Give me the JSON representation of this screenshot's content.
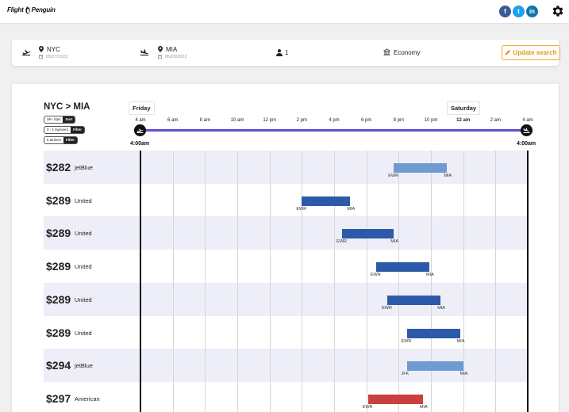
{
  "header": {
    "logo_left": "Flight",
    "logo_right": "Penguin",
    "social": [
      {
        "icon": "facebook-icon",
        "glyph": "f",
        "color": "#3b5998"
      },
      {
        "icon": "twitter-icon",
        "glyph": "t",
        "color": "#1da1f2"
      },
      {
        "icon": "linkedin-icon",
        "glyph": "in",
        "color": "#0e76a8"
      }
    ],
    "settings_icon": "gear-icon"
  },
  "search": {
    "origin": {
      "code": "NYC",
      "date": "05/27/2022"
    },
    "destination": {
      "code": "MIA",
      "date": "05/29/2022"
    },
    "passengers": "1",
    "cabin": "Economy",
    "update_label": "Update search"
  },
  "results": {
    "route": "NYC > MIA",
    "filters": [
      {
        "label": "38+ trips",
        "action": "Sort"
      },
      {
        "label": "0 - 1 layovers",
        "action": "Filter"
      },
      {
        "label": "5 airlines",
        "action": "Filter"
      }
    ],
    "day_start": "Friday",
    "day_end": "Saturday",
    "ticks": [
      "4 am",
      "6 am",
      "8 am",
      "10 am",
      "12 pm",
      "2 pm",
      "4 pm",
      "6 pm",
      "8 pm",
      "10 pm",
      "12 am",
      "2 am",
      "4 am"
    ],
    "start_time": "4:00am",
    "end_time": "4:00am",
    "colors": {
      "accent": "#5a50d8",
      "jetblue": "#6f9bd1",
      "united": "#2c5aa8",
      "american": "#c94040",
      "row_shade": "#eeeef8"
    },
    "flights": [
      {
        "price": "$282",
        "airline": "jetBlue",
        "from": "EWR",
        "to": "MIA",
        "depart_hour": 19.7,
        "arrive_hour": 23.0,
        "color": "#6f9bd1"
      },
      {
        "price": "$289",
        "airline": "United",
        "from": "EWR",
        "to": "MIA",
        "depart_hour": 14.0,
        "arrive_hour": 17.0,
        "color": "#2c5aa8"
      },
      {
        "price": "$289",
        "airline": "United",
        "from": "EWR",
        "to": "MIA",
        "depart_hour": 16.5,
        "arrive_hour": 19.7,
        "color": "#2c5aa8"
      },
      {
        "price": "$289",
        "airline": "United",
        "from": "EWR",
        "to": "MIA",
        "depart_hour": 18.6,
        "arrive_hour": 21.9,
        "color": "#2c5aa8"
      },
      {
        "price": "$289",
        "airline": "United",
        "from": "EWR",
        "to": "MIA",
        "depart_hour": 19.3,
        "arrive_hour": 22.6,
        "color": "#2c5aa8"
      },
      {
        "price": "$289",
        "airline": "United",
        "from": "EWR",
        "to": "MIA",
        "depart_hour": 20.5,
        "arrive_hour": 23.8,
        "color": "#2c5aa8"
      },
      {
        "price": "$294",
        "airline": "jetBlue",
        "from": "JFK",
        "to": "MIA",
        "depart_hour": 20.5,
        "arrive_hour": 24.0,
        "color": "#6f9bd1"
      },
      {
        "price": "$297",
        "airline": "American",
        "from": "EWR",
        "to": "MIA",
        "depart_hour": 18.1,
        "arrive_hour": 21.5,
        "color": "#c94040"
      }
    ]
  }
}
